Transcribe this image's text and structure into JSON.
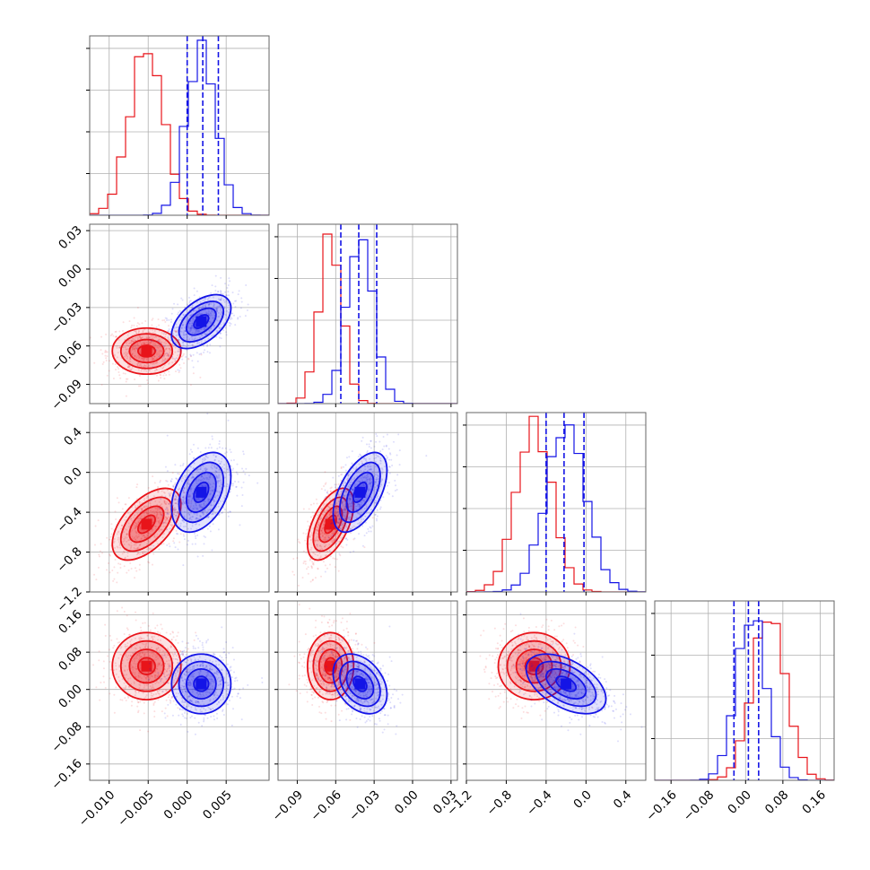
{
  "chart_data": {
    "type": "corner",
    "params": 4,
    "grid": true,
    "colors": {
      "red": "#e8141a",
      "blue": "#1414e6",
      "axis": "#666666",
      "grid": "#b0b0b0"
    },
    "series": [
      {
        "color": "red",
        "means": [
          -0.0052,
          -0.064,
          -0.52,
          0.05
        ],
        "sigmas": [
          0.0022,
          0.009,
          0.18,
          0.036
        ],
        "corr": [
          [
            1,
            0,
            0.55,
            0
          ],
          [
            0,
            1,
            0.55,
            0
          ],
          [
            0.55,
            0.55,
            1,
            0
          ],
          [
            0,
            0,
            0,
            1
          ]
        ]
      },
      {
        "color": "blue",
        "means": [
          0.0018,
          -0.041,
          -0.2,
          0.012
        ],
        "sigmas": [
          0.0019,
          0.0105,
          0.2,
          0.032
        ],
        "corr": [
          [
            1,
            0.5,
            0.4,
            0
          ],
          [
            0.5,
            1,
            0.55,
            -0.35
          ],
          [
            0.4,
            0.55,
            1,
            -0.5
          ],
          [
            0,
            -0.35,
            -0.5,
            1
          ]
        ]
      }
    ],
    "quantiles": [
      [
        0.0,
        0.002,
        0.004
      ],
      [
        -0.056,
        -0.042,
        -0.028
      ],
      [
        -0.4,
        -0.22,
        -0.02
      ],
      [
        -0.025,
        0.006,
        0.028
      ]
    ],
    "ranges": [
      [
        -0.0125,
        0.0105
      ],
      [
        -0.105,
        0.035
      ],
      [
        -1.2,
        0.6
      ],
      [
        -0.195,
        0.19
      ]
    ],
    "tick_values": [
      [
        -0.01,
        -0.005,
        0.0,
        0.005
      ],
      [
        -0.09,
        -0.06,
        -0.03,
        0.0,
        0.03
      ],
      [
        -1.2,
        -0.8,
        -0.4,
        0.0,
        0.4
      ],
      [
        -0.16,
        -0.08,
        0.0,
        0.08,
        0.16
      ]
    ],
    "tick_labels": {
      "x": [
        [
          "−0.010",
          "−0.005",
          "0.000",
          "0.005"
        ],
        [
          "−0.09",
          "−0.06",
          "−0.03",
          "0.00",
          "0.03"
        ],
        [
          "−1.2",
          "−0.8",
          "−0.4",
          "0.0",
          "0.4"
        ],
        [
          "−0.16",
          "−0.08",
          "0.00",
          "0.08",
          "0.16"
        ]
      ],
      "y": {
        "1": [
          "−0.09",
          "−0.06",
          "−0.03",
          "0.00",
          "0.03"
        ],
        "2": [
          "−1.2",
          "−0.8",
          "−0.4",
          "0.0",
          "0.4"
        ],
        "3": [
          "−0.16",
          "−0.08",
          "0.00",
          "0.08",
          "0.16"
        ]
      }
    }
  }
}
